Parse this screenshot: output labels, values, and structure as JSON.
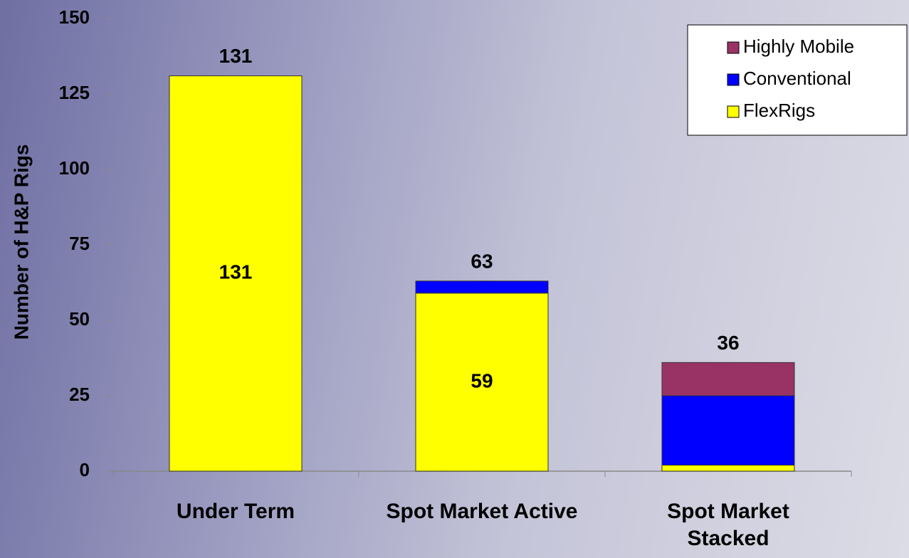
{
  "chart_data": {
    "type": "stacked-bar",
    "y_label": "Number of H&P Rigs",
    "categories": [
      "Under Term",
      "Spot Market Active",
      "Spot Market Stacked"
    ],
    "series": [
      {
        "name": "FlexRigs",
        "color": "#ffff00",
        "values": [
          131,
          59,
          2
        ],
        "value_labels": [
          "131",
          "59",
          null
        ]
      },
      {
        "name": "Conventional",
        "color": "#0000ff",
        "values": [
          0,
          4,
          23
        ]
      },
      {
        "name": "Highly Mobile",
        "color": "#993366",
        "values": [
          0,
          0,
          11
        ]
      }
    ],
    "totals": [
      131,
      63,
      36
    ],
    "ylim": [
      0,
      150
    ],
    "yticks": [
      0,
      25,
      50,
      75,
      100,
      125,
      150
    ],
    "legend": "top-right"
  }
}
